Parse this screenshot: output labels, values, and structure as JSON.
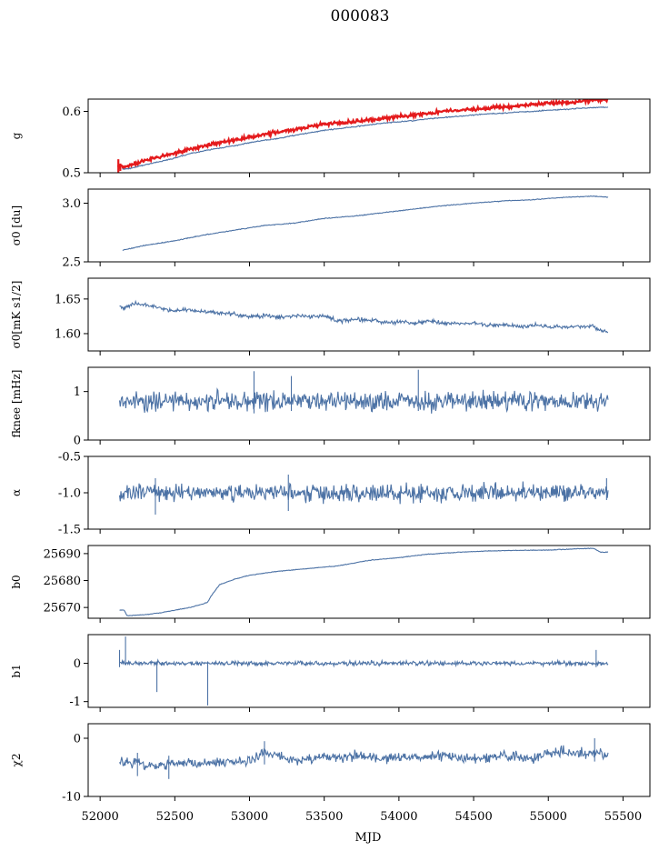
{
  "figure": {
    "title": "000083",
    "xlabel": "MJD",
    "x_range": [
      51920,
      55680
    ],
    "x_ticks": [
      "52000",
      "52500",
      "53000",
      "53500",
      "54000",
      "54500",
      "55000",
      "55500"
    ]
  },
  "chart_data": [
    {
      "type": "line",
      "ylabel": "g",
      "ylim": [
        0.5,
        0.62
      ],
      "yticks": [
        "0.5",
        "0.6"
      ],
      "series": [
        {
          "color": "#e41a1c",
          "x": [
            52120,
            52150,
            52200,
            52300,
            52400,
            52500,
            52600,
            52700,
            52800,
            52900,
            53000,
            53100,
            53200,
            53300,
            53400,
            53500,
            53600,
            53700,
            53800,
            53900,
            54000,
            54100,
            54200,
            54300,
            54400,
            54500,
            54600,
            54700,
            54800,
            54900,
            55000,
            55100,
            55200,
            55300,
            55400
          ],
          "y": [
            0.512,
            0.509,
            0.512,
            0.52,
            0.526,
            0.532,
            0.538,
            0.544,
            0.549,
            0.553,
            0.558,
            0.563,
            0.566,
            0.57,
            0.575,
            0.579,
            0.581,
            0.583,
            0.586,
            0.589,
            0.591,
            0.594,
            0.597,
            0.6,
            0.601,
            0.603,
            0.605,
            0.607,
            0.609,
            0.611,
            0.613,
            0.615,
            0.616,
            0.618,
            0.619
          ],
          "noise": 0.0025,
          "spikes": [
            [
              52122,
              0.497,
              0.522
            ],
            [
              52135,
              0.503,
              0.515
            ]
          ]
        },
        {
          "color": "#4c72a5",
          "x": [
            52150,
            52200,
            52300,
            52400,
            52500,
            52600,
            52700,
            52800,
            52900,
            53000,
            53100,
            53200,
            53300,
            53400,
            53500,
            53600,
            53700,
            53800,
            53900,
            54000,
            54100,
            54200,
            54300,
            54400,
            54500,
            54600,
            54700,
            54800,
            54900,
            55000,
            55100,
            55200,
            55300,
            55400
          ],
          "y": [
            0.506,
            0.507,
            0.513,
            0.518,
            0.524,
            0.531,
            0.536,
            0.54,
            0.544,
            0.549,
            0.553,
            0.556,
            0.561,
            0.565,
            0.569,
            0.572,
            0.575,
            0.578,
            0.581,
            0.583,
            0.585,
            0.588,
            0.59,
            0.592,
            0.594,
            0.596,
            0.597,
            0.599,
            0.6,
            0.602,
            0.603,
            0.605,
            0.606,
            0.607
          ],
          "noise": 0.0007
        }
      ]
    },
    {
      "type": "line",
      "ylabel": "σ0 [du]",
      "ylim": [
        2.5,
        3.12
      ],
      "yticks": [
        "2.5",
        "3.0"
      ],
      "series": [
        {
          "color": "#4c72a5",
          "x": [
            52150,
            52300,
            52500,
            52700,
            52900,
            53100,
            53300,
            53500,
            53700,
            53900,
            54100,
            54300,
            54500,
            54700,
            54900,
            55100,
            55300,
            55400
          ],
          "y": [
            2.6,
            2.64,
            2.68,
            2.73,
            2.77,
            2.81,
            2.83,
            2.87,
            2.89,
            2.92,
            2.95,
            2.98,
            3.0,
            3.02,
            3.03,
            3.05,
            3.06,
            3.05
          ],
          "noise": 0.003
        }
      ]
    },
    {
      "type": "line",
      "ylabel": "σ0[mK s1/2]",
      "ylim": [
        1.575,
        1.68
      ],
      "yticks": [
        "1.60",
        "1.65"
      ],
      "series": [
        {
          "color": "#4c72a5",
          "x": [
            52130,
            52160,
            52220,
            52300,
            52400,
            52500,
            52600,
            52700,
            52800,
            52900,
            53000,
            53100,
            53200,
            53300,
            53400,
            53500,
            53600,
            53700,
            53800,
            53900,
            54000,
            54100,
            54200,
            54300,
            54400,
            54500,
            54600,
            54700,
            54800,
            54900,
            55000,
            55100,
            55200,
            55300,
            55350,
            55400
          ],
          "y": [
            1.64,
            1.636,
            1.644,
            1.641,
            1.637,
            1.633,
            1.634,
            1.632,
            1.63,
            1.628,
            1.625,
            1.626,
            1.624,
            1.626,
            1.624,
            1.626,
            1.618,
            1.62,
            1.62,
            1.617,
            1.617,
            1.615,
            1.618,
            1.615,
            1.614,
            1.615,
            1.612,
            1.613,
            1.611,
            1.612,
            1.61,
            1.609,
            1.61,
            1.611,
            1.604,
            1.605
          ],
          "noise": 0.0025
        }
      ]
    },
    {
      "type": "line",
      "ylabel": "fknee [mHz]",
      "ylim": [
        0,
        1.5
      ],
      "yticks": [
        "0",
        "1"
      ],
      "series": [
        {
          "color": "#4c72a5",
          "x": [
            52130,
            55400
          ],
          "y": [
            0.8,
            0.8
          ],
          "noise": 0.16,
          "spikes": [
            [
              53030,
              0.55,
              1.42
            ],
            [
              53280,
              0.6,
              1.32
            ],
            [
              54130,
              0.6,
              1.45
            ]
          ]
        }
      ]
    },
    {
      "type": "line",
      "ylabel": "α",
      "ylim": [
        -1.5,
        -0.5
      ],
      "yticks": [
        "-1.5",
        "-1.0",
        "-0.5"
      ],
      "series": [
        {
          "color": "#4c72a5",
          "x": [
            52130,
            55400
          ],
          "y": [
            -1.0,
            -1.0
          ],
          "noise": 0.1,
          "spikes": [
            [
              52370,
              -1.3,
              -0.8
            ],
            [
              53260,
              -1.25,
              -0.75
            ],
            [
              55390,
              -1.1,
              -0.8
            ]
          ]
        }
      ]
    },
    {
      "type": "line",
      "ylabel": "b0",
      "ylim": [
        25666,
        25693
      ],
      "yticks": [
        "25670",
        "25680",
        "25690"
      ],
      "series": [
        {
          "color": "#4c72a5",
          "x": [
            52130,
            52160,
            52180,
            52200,
            52300,
            52400,
            52500,
            52600,
            52700,
            52720,
            52740,
            52780,
            52800,
            52900,
            53000,
            53200,
            53400,
            53600,
            53800,
            54000,
            54200,
            54400,
            54600,
            54800,
            55000,
            55200,
            55300,
            55350,
            55400
          ],
          "y": [
            25669,
            25669,
            25667,
            25667,
            25667.3,
            25668,
            25669,
            25670,
            25671.5,
            25672,
            25674,
            25677,
            25678.5,
            25680.5,
            25682,
            25683.5,
            25684.5,
            25685.5,
            25687.5,
            25688.5,
            25689.8,
            25690.5,
            25691,
            25691.2,
            25691.3,
            25691.8,
            25692,
            25690.5,
            25690.5
          ],
          "noise": 0.1
        }
      ]
    },
    {
      "type": "line",
      "ylabel": "b1",
      "ylim": [
        -1.15,
        0.75
      ],
      "yticks": [
        "-1",
        "0"
      ],
      "series": [
        {
          "color": "#4c72a5",
          "x": [
            52130,
            55400
          ],
          "y": [
            0.0,
            0.0
          ],
          "noise": 0.05,
          "spikes": [
            [
              52130,
              -0.1,
              0.35
            ],
            [
              52170,
              -0.05,
              0.7
            ],
            [
              52380,
              -0.75,
              0.05
            ],
            [
              52720,
              -1.1,
              0.05
            ],
            [
              55320,
              -0.1,
              0.35
            ]
          ]
        }
      ]
    },
    {
      "type": "line",
      "ylabel": "χ2",
      "ylim": [
        -10,
        2.5
      ],
      "yticks": [
        "-10",
        "0"
      ],
      "series": [
        {
          "color": "#4c72a5",
          "x": [
            52130,
            52300,
            52450,
            52600,
            52800,
            53000,
            53100,
            53300,
            53500,
            53700,
            53900,
            54100,
            54300,
            54500,
            54700,
            54900,
            55000,
            55100,
            55200,
            55300,
            55400
          ],
          "y": [
            -4,
            -4.5,
            -4.5,
            -4.2,
            -4.2,
            -3.8,
            -2.5,
            -3.8,
            -3.3,
            -3.0,
            -3.5,
            -3.2,
            -3.0,
            -3.5,
            -3.0,
            -3.5,
            -2.5,
            -2.2,
            -2.5,
            -2.5,
            -3.0
          ],
          "noise": 0.75,
          "spikes": [
            [
              52250,
              -6.5,
              -2.5
            ],
            [
              52460,
              -7.0,
              -3.0
            ],
            [
              53100,
              -4.5,
              -0.5
            ],
            [
              55310,
              -4.0,
              0.0
            ]
          ]
        }
      ]
    }
  ]
}
